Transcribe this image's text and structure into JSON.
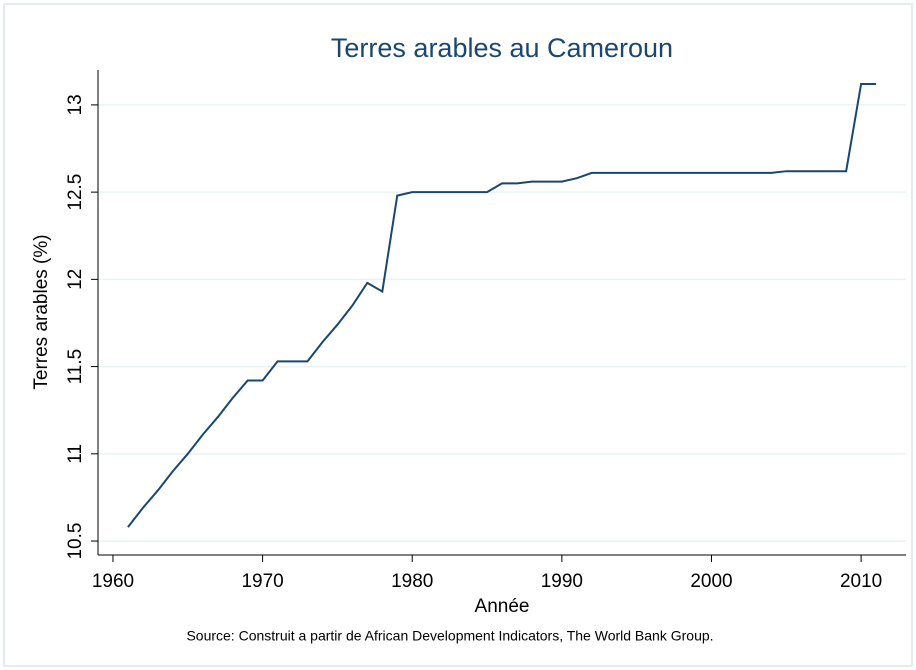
{
  "chart_data": {
    "type": "line",
    "title": "Terres arables au Cameroun",
    "x_label": "Année",
    "y_label": "Terres arables (%)",
    "note": "Source: Construit a partir de African Development Indicators, The World Bank Group.",
    "x": [
      1961,
      1962,
      1963,
      1964,
      1965,
      1966,
      1967,
      1968,
      1969,
      1970,
      1971,
      1972,
      1973,
      1974,
      1975,
      1976,
      1977,
      1978,
      1979,
      1980,
      1981,
      1982,
      1983,
      1984,
      1985,
      1986,
      1987,
      1988,
      1989,
      1990,
      1991,
      1992,
      1993,
      1994,
      1995,
      1996,
      1997,
      1998,
      1999,
      2000,
      2001,
      2002,
      2003,
      2004,
      2005,
      2006,
      2007,
      2008,
      2009,
      2010,
      2011
    ],
    "series": [
      {
        "color": "#1a476f",
        "values": [
          10.58,
          10.69,
          10.79,
          10.9,
          11.0,
          11.11,
          11.21,
          11.32,
          11.42,
          11.42,
          11.53,
          11.53,
          11.53,
          11.64,
          11.74,
          11.85,
          11.98,
          11.93,
          12.48,
          12.5,
          12.5,
          12.5,
          12.5,
          12.5,
          12.5,
          12.55,
          12.55,
          12.56,
          12.56,
          12.56,
          12.58,
          12.61,
          12.61,
          12.61,
          12.61,
          12.61,
          12.61,
          12.61,
          12.61,
          12.61,
          12.61,
          12.61,
          12.61,
          12.61,
          12.62,
          12.62,
          12.62,
          12.62,
          12.62,
          13.12,
          13.12
        ]
      }
    ],
    "xlim": [
      1959,
      2013
    ],
    "xticks": [
      1960,
      1970,
      1980,
      1990,
      2000,
      2010
    ],
    "ylim": [
      10.42,
      13.2
    ],
    "yticks": [
      10.5,
      11,
      11.5,
      12,
      12.5,
      13
    ],
    "grid": true
  }
}
